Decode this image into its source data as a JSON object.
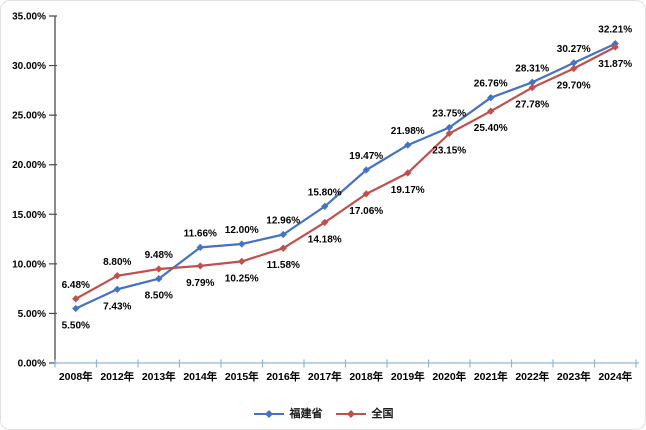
{
  "chart_data": {
    "type": "line",
    "title": "",
    "xlabel": "",
    "ylabel": "",
    "categories": [
      "2008年",
      "2012年",
      "2013年",
      "2014年",
      "2015年",
      "2016年",
      "2017年",
      "2018年",
      "2019年",
      "2020年",
      "2021年",
      "2022年",
      "2023年",
      "2024年"
    ],
    "series": [
      {
        "name": "福建省",
        "color": "#4472C4",
        "marker": "diamond",
        "values": [
          5.5,
          7.43,
          8.5,
          11.66,
          12.0,
          12.96,
          15.8,
          19.47,
          21.98,
          23.75,
          26.76,
          28.31,
          30.27,
          32.21
        ],
        "labels": [
          "5.50%",
          "7.43%",
          "8.50%",
          "11.66%",
          "12.00%",
          "12.96%",
          "15.80%",
          "19.47%",
          "21.98%",
          "23.75%",
          "26.76%",
          "28.31%",
          "30.27%",
          "32.21%"
        ]
      },
      {
        "name": "全国",
        "color": "#C0504D",
        "marker": "diamond",
        "values": [
          6.48,
          8.8,
          9.48,
          9.79,
          10.25,
          11.58,
          14.18,
          17.06,
          19.17,
          23.15,
          25.4,
          27.78,
          29.7,
          31.87
        ],
        "labels": [
          "6.48%",
          "8.80%",
          "9.48%",
          "9.79%",
          "10.25%",
          "11.58%",
          "14.18%",
          "17.06%",
          "19.17%",
          "23.15%",
          "25.40%",
          "27.78%",
          "29.70%",
          "31.87%"
        ]
      }
    ],
    "ylim": [
      0,
      35
    ],
    "ytick_step": 5,
    "ytick_labels": [
      "0.00%",
      "5.00%",
      "10.00%",
      "15.00%",
      "20.00%",
      "25.00%",
      "30.00%",
      "35.00%"
    ],
    "grid": false,
    "legend_position": "bottom",
    "colors": {
      "x_axis_line": "#95B3D7",
      "y_axis_line": "#4d4d4d",
      "tick_label_text": "#000000",
      "data_label_text": "#000000"
    }
  }
}
